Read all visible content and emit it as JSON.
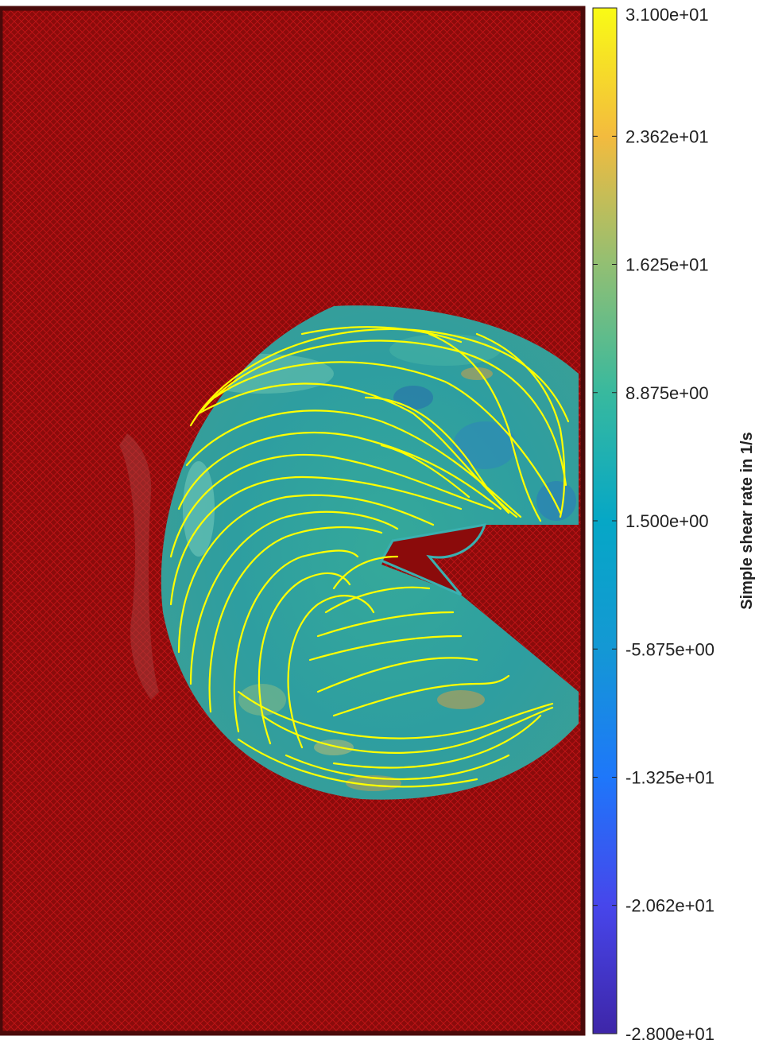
{
  "chart_data": {
    "type": "heatmap",
    "description_free": true,
    "colorbar": {
      "label": "Simple shear rate in 1/s",
      "colormap": "parula",
      "range": [
        -28.0,
        31.0
      ],
      "ticks": [
        {
          "value": 31.0,
          "label": "3.100e+01"
        },
        {
          "value": 23.62,
          "label": "2.362e+01"
        },
        {
          "value": 16.25,
          "label": "1.625e+01"
        },
        {
          "value": 8.875,
          "label": "8.875e+00"
        },
        {
          "value": 1.5,
          "label": "1.500e+00"
        },
        {
          "value": -5.875,
          "label": "-5.875e+00"
        },
        {
          "value": -13.25,
          "label": "-1.325e+01"
        },
        {
          "value": -20.62,
          "label": "-2.062e+01"
        },
        {
          "value": -28.0,
          "label": "-2.800e+01"
        }
      ]
    },
    "masked_region_color": "#8b0a0a",
    "streamline_color": "#ffff00",
    "field_base_color": "#2fa39a"
  }
}
